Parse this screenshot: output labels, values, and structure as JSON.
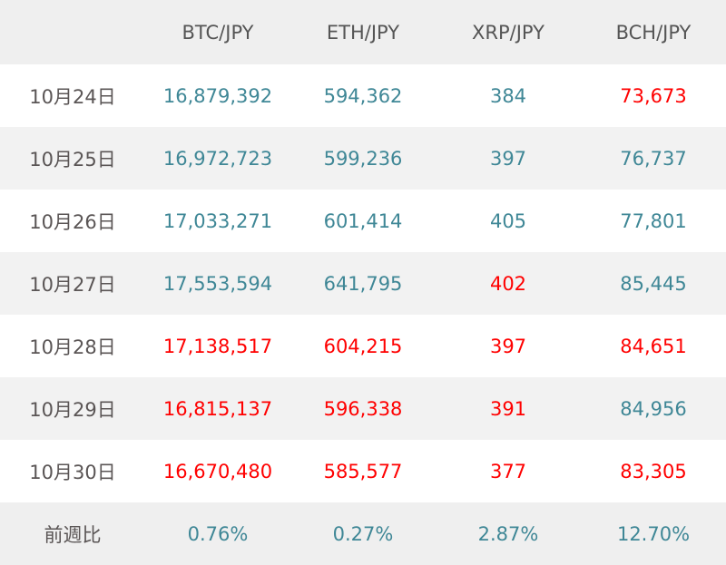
{
  "colors": {
    "teal": "#3f8796",
    "red": "#ff0000"
  },
  "header": {
    "blank": "",
    "columns": [
      "BTC/JPY",
      "ETH/JPY",
      "XRP/JPY",
      "BCH/JPY"
    ]
  },
  "rows": [
    {
      "date": "10月24日",
      "values": [
        "16,879,392",
        "594,362",
        "384",
        "73,673"
      ],
      "colors": [
        "teal",
        "teal",
        "teal",
        "red"
      ]
    },
    {
      "date": "10月25日",
      "values": [
        "16,972,723",
        "599,236",
        "397",
        "76,737"
      ],
      "colors": [
        "teal",
        "teal",
        "teal",
        "teal"
      ]
    },
    {
      "date": "10月26日",
      "values": [
        "17,033,271",
        "601,414",
        "405",
        "77,801"
      ],
      "colors": [
        "teal",
        "teal",
        "teal",
        "teal"
      ]
    },
    {
      "date": "10月27日",
      "values": [
        "17,553,594",
        "641,795",
        "402",
        "85,445"
      ],
      "colors": [
        "teal",
        "teal",
        "red",
        "teal"
      ]
    },
    {
      "date": "10月28日",
      "values": [
        "17,138,517",
        "604,215",
        "397",
        "84,651"
      ],
      "colors": [
        "red",
        "red",
        "red",
        "red"
      ]
    },
    {
      "date": "10月29日",
      "values": [
        "16,815,137",
        "596,338",
        "391",
        "84,956"
      ],
      "colors": [
        "red",
        "red",
        "red",
        "teal"
      ]
    },
    {
      "date": "10月30日",
      "values": [
        "16,670,480",
        "585,577",
        "377",
        "83,305"
      ],
      "colors": [
        "red",
        "red",
        "red",
        "red"
      ]
    }
  ],
  "summary": {
    "label": "前週比",
    "values": [
      "0.76%",
      "0.27%",
      "2.87%",
      "12.70%"
    ],
    "colors": [
      "teal",
      "teal",
      "teal",
      "teal"
    ]
  }
}
